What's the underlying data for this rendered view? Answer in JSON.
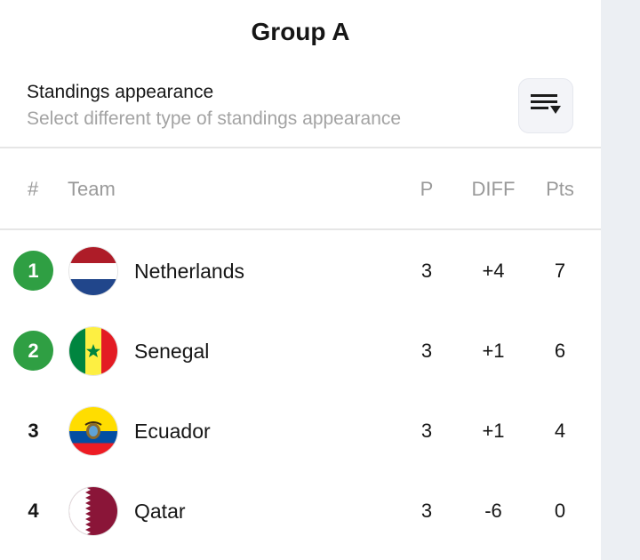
{
  "header": {
    "title": "Group A"
  },
  "appearance": {
    "title": "Standings appearance",
    "subtitle": "Select different type of standings appearance",
    "button_icon": "sort-list-icon"
  },
  "columns": {
    "rank": "#",
    "team": "Team",
    "played": "P",
    "diff": "DIFF",
    "points": "Pts"
  },
  "colors": {
    "qualified": "#2f9f43"
  },
  "rows": [
    {
      "rank": "1",
      "team": "Netherlands",
      "played": "3",
      "diff": "+4",
      "points": "7",
      "qualified": true,
      "flag": "netherlands-flag-icon"
    },
    {
      "rank": "2",
      "team": "Senegal",
      "played": "3",
      "diff": "+1",
      "points": "6",
      "qualified": true,
      "flag": "senegal-flag-icon"
    },
    {
      "rank": "3",
      "team": "Ecuador",
      "played": "3",
      "diff": "+1",
      "points": "4",
      "qualified": false,
      "flag": "ecuador-flag-icon"
    },
    {
      "rank": "4",
      "team": "Qatar",
      "played": "3",
      "diff": "-6",
      "points": "0",
      "qualified": false,
      "flag": "qatar-flag-icon"
    }
  ]
}
